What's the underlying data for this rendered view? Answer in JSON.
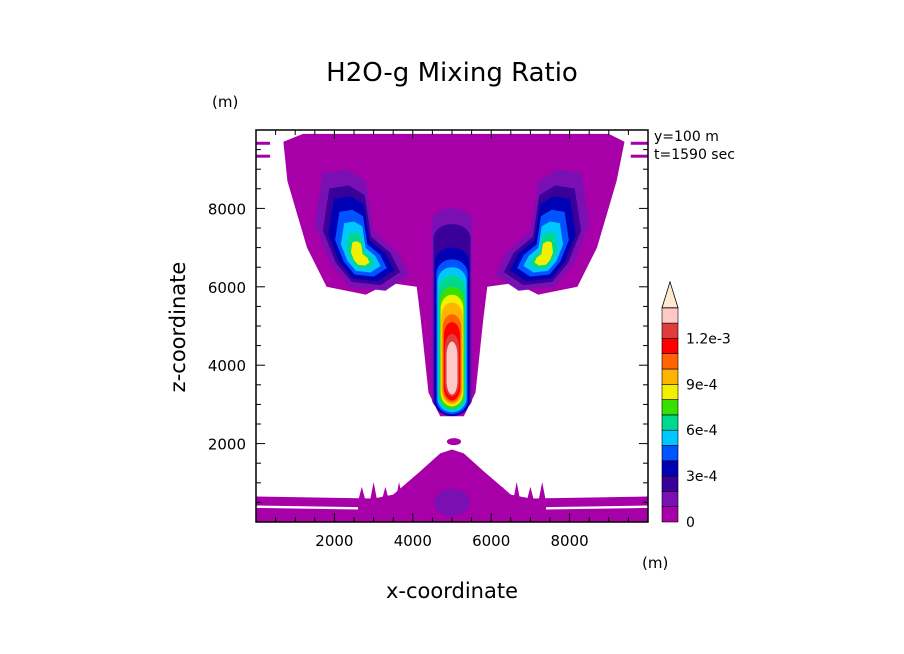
{
  "chart_data": {
    "type": "heatmap",
    "title": "H2O-g Mixing Ratio",
    "xlabel": "x-coordinate",
    "ylabel": "z-coordinate",
    "x_unit": "(m)",
    "y_unit": "(m)",
    "xlim": [
      0,
      10000
    ],
    "ylim": [
      0,
      10000
    ],
    "xticks": [
      2000,
      4000,
      6000,
      8000
    ],
    "yticks": [
      2000,
      4000,
      6000,
      8000
    ],
    "annotations": [
      "y=100 m",
      "t=1590 sec"
    ],
    "colorbar": {
      "levels": [
        0,
        0.0001,
        0.0002,
        0.0003,
        0.0004,
        0.0005,
        0.0006,
        0.0007,
        0.0008,
        0.0009,
        0.001,
        0.0011,
        0.0012,
        0.0013
      ],
      "colors": [
        "#a800a8",
        "#7a10b4",
        "#3a009a",
        "#0000b4",
        "#0054ff",
        "#00c8ff",
        "#00d890",
        "#38e000",
        "#f0f000",
        "#ffb400",
        "#ff6400",
        "#ff0000",
        "#e03c3c",
        "#ffc8c8"
      ],
      "tick_labels": [
        "0",
        "3e-4",
        "6e-4",
        "9e-4",
        "1.2e-3"
      ],
      "extend": "max",
      "extend_color": "#ffe8d0"
    }
  }
}
